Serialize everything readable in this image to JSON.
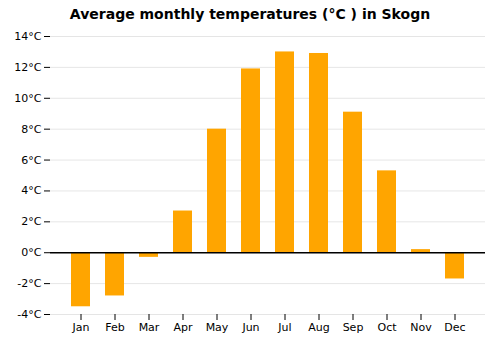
{
  "chart_data": {
    "type": "bar",
    "title": "Average monthly temperatures (°C ) in Skogn",
    "categories": [
      "Jan",
      "Feb",
      "Mar",
      "Apr",
      "May",
      "Jun",
      "Jul",
      "Aug",
      "Sep",
      "Oct",
      "Nov",
      "Dec"
    ],
    "values": [
      -3.5,
      -2.8,
      -0.3,
      2.7,
      8.0,
      11.9,
      13.0,
      12.9,
      9.1,
      5.3,
      0.2,
      -1.7
    ],
    "color": "#FFA500",
    "ylim": [
      -4,
      14
    ],
    "yticks": [
      {
        "value": -4,
        "label": "-4°C"
      },
      {
        "value": -2,
        "label": "-2°C"
      },
      {
        "value": 0,
        "label": "0°C"
      },
      {
        "value": 2,
        "label": "2°C"
      },
      {
        "value": 4,
        "label": "4°C"
      },
      {
        "value": 6,
        "label": "6°C"
      },
      {
        "value": 8,
        "label": "8°C"
      },
      {
        "value": 10,
        "label": "10°C"
      },
      {
        "value": 12,
        "label": "12°C"
      },
      {
        "value": 14,
        "label": "14°C"
      }
    ],
    "grid": true
  }
}
